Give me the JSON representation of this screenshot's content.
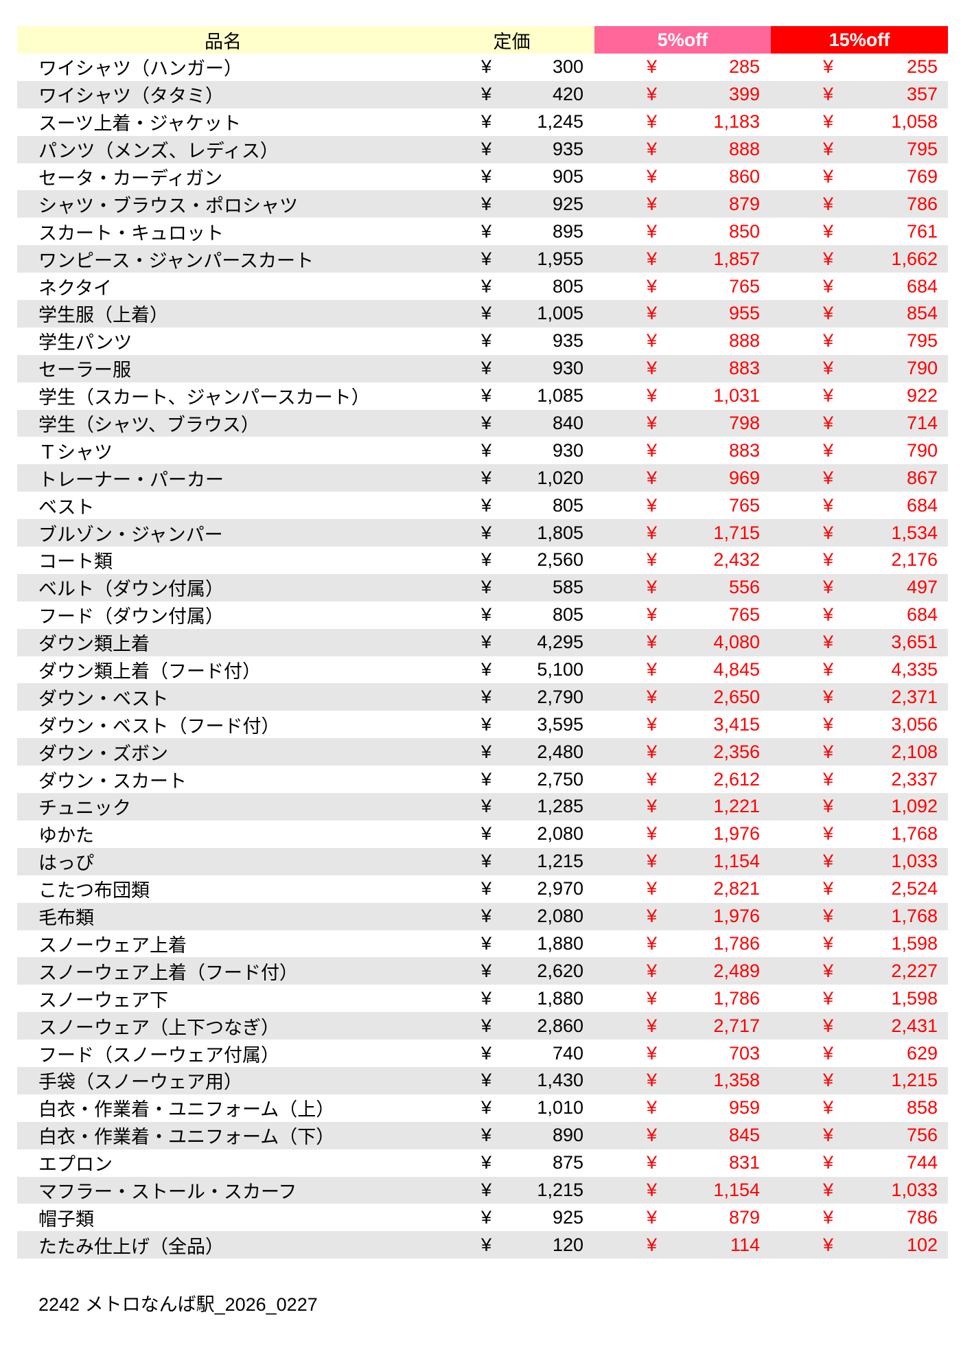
{
  "header": {
    "name": "品名",
    "price": "定価",
    "off5": "5%off",
    "off15": "15%off"
  },
  "colors": {
    "header_bg": "#ffffcc",
    "off5_bg": "#ff6699",
    "off15_bg": "#ff0000",
    "discount_text": "#ff0000",
    "alt_row": "#e7e6e6"
  },
  "currency": "¥",
  "rows": [
    [
      "ワイシャツ（ハンガー）",
      "300",
      "285",
      "255"
    ],
    [
      "ワイシャツ（タタミ）",
      "420",
      "399",
      "357"
    ],
    [
      "スーツ上着・ジャケット",
      "1,245",
      "1,183",
      "1,058"
    ],
    [
      "パンツ（メンズ、レディス）",
      "935",
      "888",
      "795"
    ],
    [
      "セータ・カーディガン",
      "905",
      "860",
      "769"
    ],
    [
      "シャツ・ブラウス・ポロシャツ",
      "925",
      "879",
      "786"
    ],
    [
      "スカート・キュロット",
      "895",
      "850",
      "761"
    ],
    [
      "ワンピース・ジャンパースカート",
      "1,955",
      "1,857",
      "1,662"
    ],
    [
      "ネクタイ",
      "805",
      "765",
      "684"
    ],
    [
      "学生服（上着）",
      "1,005",
      "955",
      "854"
    ],
    [
      "学生パンツ",
      "935",
      "888",
      "795"
    ],
    [
      "セーラー服",
      "930",
      "883",
      "790"
    ],
    [
      "学生（スカート、ジャンパースカート）",
      "1,085",
      "1,031",
      "922"
    ],
    [
      "学生（シャツ、ブラウス）",
      "840",
      "798",
      "714"
    ],
    [
      "Ｔシャツ",
      "930",
      "883",
      "790"
    ],
    [
      "トレーナー・パーカー",
      "1,020",
      "969",
      "867"
    ],
    [
      "ベスト",
      "805",
      "765",
      "684"
    ],
    [
      "ブルゾン・ジャンパー",
      "1,805",
      "1,715",
      "1,534"
    ],
    [
      "コート類",
      "2,560",
      "2,432",
      "2,176"
    ],
    [
      "ベルト（ダウン付属）",
      "585",
      "556",
      "497"
    ],
    [
      "フード（ダウン付属）",
      "805",
      "765",
      "684"
    ],
    [
      "ダウン類上着",
      "4,295",
      "4,080",
      "3,651"
    ],
    [
      "ダウン類上着（フード付）",
      "5,100",
      "4,845",
      "4,335"
    ],
    [
      "ダウン・ベスト",
      "2,790",
      "2,650",
      "2,371"
    ],
    [
      "ダウン・ベスト（フード付）",
      "3,595",
      "3,415",
      "3,056"
    ],
    [
      "ダウン・ズボン",
      "2,480",
      "2,356",
      "2,108"
    ],
    [
      "ダウン・スカート",
      "2,750",
      "2,612",
      "2,337"
    ],
    [
      "チュニック",
      "1,285",
      "1,221",
      "1,092"
    ],
    [
      "ゆかた",
      "2,080",
      "1,976",
      "1,768"
    ],
    [
      "はっぴ",
      "1,215",
      "1,154",
      "1,033"
    ],
    [
      "こたつ布団類",
      "2,970",
      "2,821",
      "2,524"
    ],
    [
      "毛布類",
      "2,080",
      "1,976",
      "1,768"
    ],
    [
      "スノーウェア上着",
      "1,880",
      "1,786",
      "1,598"
    ],
    [
      "スノーウェア上着（フード付）",
      "2,620",
      "2,489",
      "2,227"
    ],
    [
      "スノーウェア下",
      "1,880",
      "1,786",
      "1,598"
    ],
    [
      "スノーウェア（上下つなぎ）",
      "2,860",
      "2,717",
      "2,431"
    ],
    [
      "フード（スノーウェア付属）",
      "740",
      "703",
      "629"
    ],
    [
      "手袋（スノーウェア用）",
      "1,430",
      "1,358",
      "1,215"
    ],
    [
      "白衣・作業着・ユニフォーム（上）",
      "1,010",
      "959",
      "858"
    ],
    [
      "白衣・作業着・ユニフォーム（下）",
      "890",
      "845",
      "756"
    ],
    [
      "エプロン",
      "875",
      "831",
      "744"
    ],
    [
      "マフラー・ストール・スカーフ",
      "1,215",
      "1,154",
      "1,033"
    ],
    [
      "帽子類",
      "925",
      "879",
      "786"
    ],
    [
      "たたみ仕上げ（全品）",
      "120",
      "114",
      "102"
    ]
  ],
  "footer": "2242 メトロなんば駅_2026_0227"
}
